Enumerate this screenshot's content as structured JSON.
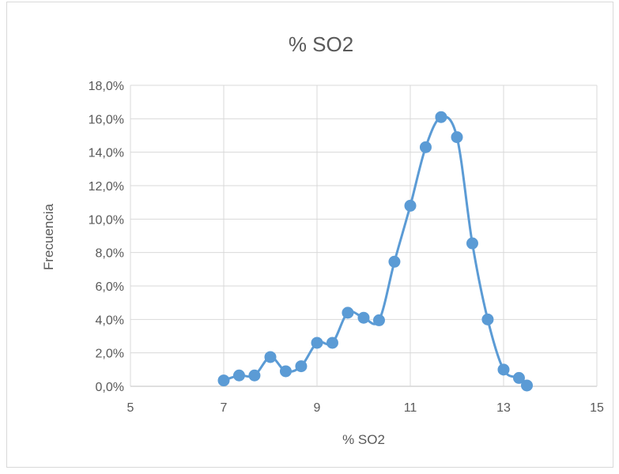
{
  "chart_data": {
    "type": "scatter",
    "title": "% SO2",
    "xlabel": "% SO2",
    "ylabel": "Frecuencia",
    "xlim": [
      5,
      15
    ],
    "ylim": [
      0,
      18
    ],
    "x_ticks": [
      5,
      7,
      9,
      11,
      13,
      15
    ],
    "x_tick_labels": [
      "5",
      "7",
      "9",
      "11",
      "13",
      "15"
    ],
    "y_ticks": [
      0,
      2,
      4,
      6,
      8,
      10,
      12,
      14,
      16,
      18
    ],
    "y_tick_labels": [
      "0,0%",
      "2,0%",
      "4,0%",
      "6,0%",
      "8,0%",
      "10,0%",
      "12,0%",
      "14,0%",
      "16,0%",
      "18,0%"
    ],
    "grid": true,
    "smooth_line": true,
    "series_color": "#5b9bd5",
    "series": [
      {
        "points": [
          {
            "x": 7.0,
            "y": 0.35
          },
          {
            "x": 7.33,
            "y": 0.65
          },
          {
            "x": 7.66,
            "y": 0.65
          },
          {
            "x": 8.0,
            "y": 1.75
          },
          {
            "x": 8.33,
            "y": 0.9
          },
          {
            "x": 8.66,
            "y": 1.2
          },
          {
            "x": 9.0,
            "y": 2.6
          },
          {
            "x": 9.33,
            "y": 2.6
          },
          {
            "x": 9.66,
            "y": 4.4
          },
          {
            "x": 10.0,
            "y": 4.1
          },
          {
            "x": 10.33,
            "y": 3.95
          },
          {
            "x": 10.66,
            "y": 7.45
          },
          {
            "x": 11.0,
            "y": 10.8
          },
          {
            "x": 11.33,
            "y": 14.3
          },
          {
            "x": 11.66,
            "y": 16.1
          },
          {
            "x": 12.0,
            "y": 14.9
          },
          {
            "x": 12.33,
            "y": 8.55
          },
          {
            "x": 12.66,
            "y": 4.0
          },
          {
            "x": 13.0,
            "y": 1.0
          },
          {
            "x": 13.33,
            "y": 0.5
          },
          {
            "x": 13.5,
            "y": 0.05
          }
        ]
      }
    ]
  }
}
